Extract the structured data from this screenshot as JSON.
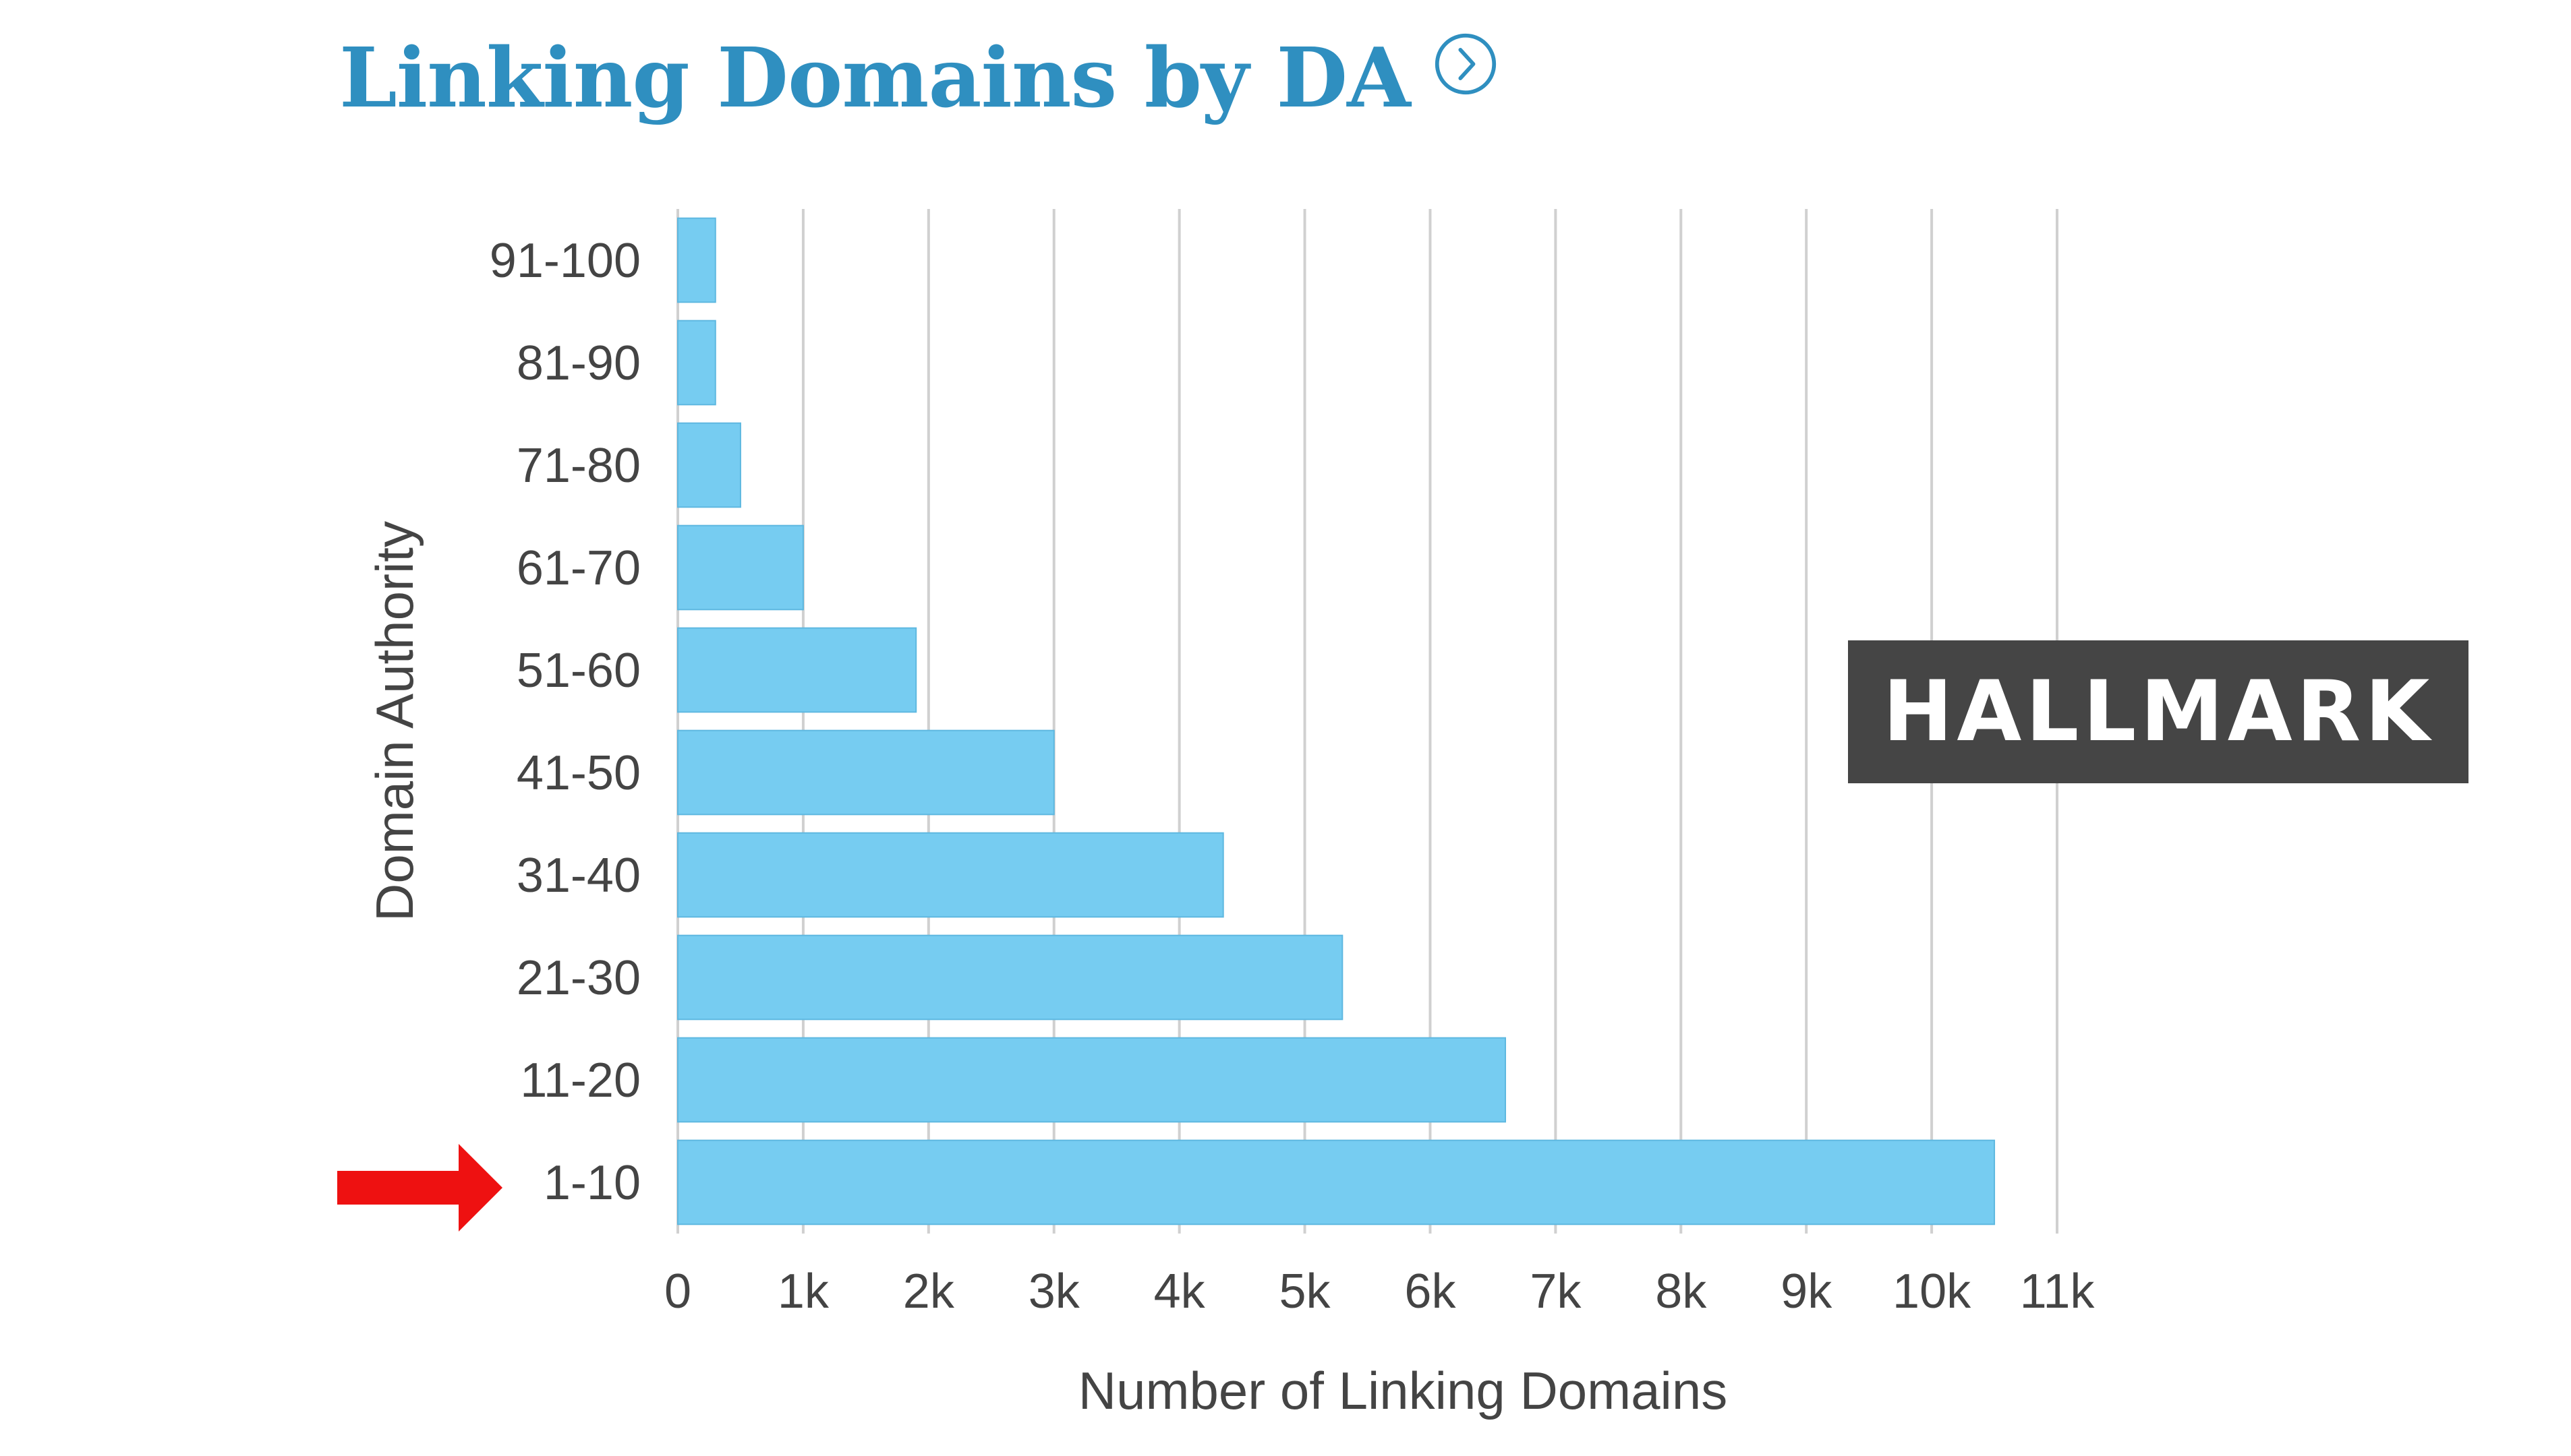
{
  "title": "Linking Domains by DA",
  "icons": {
    "title_icon": "chevron-right-circle-icon",
    "pointer_icon": "red-arrow-right-icon"
  },
  "watermark": "HALLMARK",
  "colors": {
    "title": "#2f8fc0",
    "bar": "#76ccf1",
    "bar_edge": "#5eb8e0",
    "gridline": "#d0d0d0",
    "text": "#444444",
    "arrow": "#ee1111",
    "watermark_bg": "#454545"
  },
  "chart_data": {
    "type": "bar",
    "orientation": "horizontal",
    "categories": [
      "91-100",
      "81-90",
      "71-80",
      "61-70",
      "51-60",
      "41-50",
      "31-40",
      "21-30",
      "11-20",
      "1-10"
    ],
    "values": [
      300,
      300,
      500,
      1000,
      1900,
      3000,
      4350,
      5300,
      6600,
      10500
    ],
    "xlabel": "Number of Linking Domains",
    "ylabel": "Domain Authority",
    "xlim": [
      0,
      11000
    ],
    "xticks": [
      0,
      1000,
      2000,
      3000,
      4000,
      5000,
      6000,
      7000,
      8000,
      9000,
      10000,
      11000
    ],
    "xtick_labels": [
      "0",
      "1k",
      "2k",
      "3k",
      "4k",
      "5k",
      "6k",
      "7k",
      "8k",
      "9k",
      "10k",
      "11k"
    ],
    "grid": "vertical",
    "legend": "none",
    "highlight_category": "1-10"
  }
}
